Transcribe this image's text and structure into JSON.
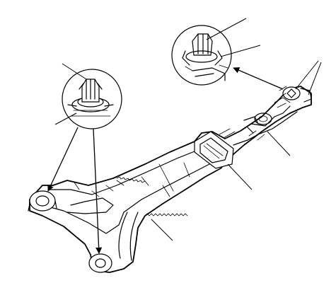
{
  "diagram": {
    "subject": "door-trim-bracket-clip-locations",
    "callouts": [
      {
        "id": "clip-detail-left-top"
      },
      {
        "id": "clip-detail-left-bottom"
      },
      {
        "id": "clip-detail-right-top"
      },
      {
        "id": "clip-detail-right-bottom"
      },
      {
        "id": "clip-location-right-upper"
      },
      {
        "id": "clip-location-right-lower"
      },
      {
        "id": "bracket-right-section"
      },
      {
        "id": "clip-location-middle"
      },
      {
        "id": "bracket-lower-edge"
      }
    ]
  }
}
